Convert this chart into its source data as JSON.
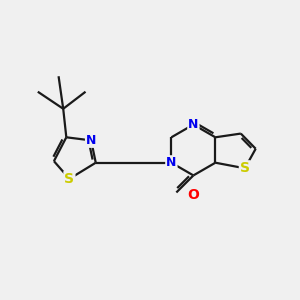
{
  "bg_color": "#f0f0f0",
  "bond_color": "#1a1a1a",
  "bond_width": 1.6,
  "atom_colors": {
    "N": "#0000ee",
    "S": "#cccc00",
    "O": "#ff0000",
    "C": "#1a1a1a"
  },
  "font_size": 9,
  "xlim": [
    0.0,
    9.5
  ],
  "ylim": [
    1.5,
    9.0
  ]
}
